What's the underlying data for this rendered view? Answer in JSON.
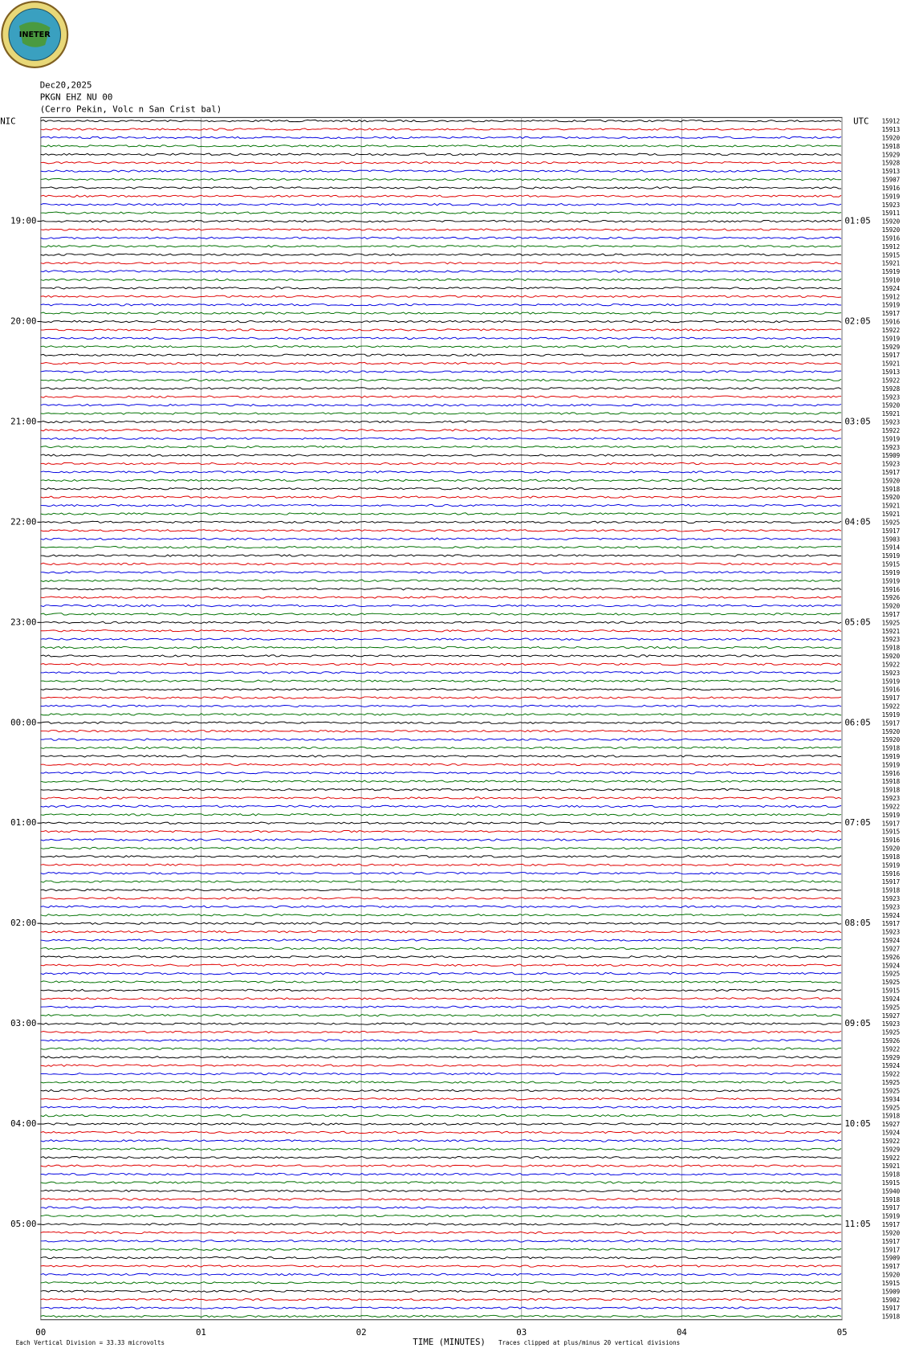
{
  "logo": "INETER",
  "chart_data": {
    "type": "helicorder",
    "title_lines": [
      "Dec20,2025",
      "PKGN EHZ NU 00",
      "(Cerro Pekin, Volc n San Crist bal)"
    ],
    "left_zone": "NIC",
    "right_zone": "UTC",
    "trace_colors": [
      "#000000",
      "#e00000",
      "#0000e0",
      "#007000"
    ],
    "left_labels": [
      "19:00",
      "20:00",
      "21:00",
      "22:00",
      "23:00",
      "00:00",
      "01:00",
      "02:00",
      "03:00",
      "04:00",
      "05:00"
    ],
    "right_labels": [
      "01:05",
      "02:05",
      "03:05",
      "04:05",
      "05:05",
      "06:05",
      "07:05",
      "08:05",
      "09:05",
      "10:05",
      "11:05"
    ],
    "trace_values": [
      15912,
      15913,
      15920,
      15918,
      15929,
      15928,
      15913,
      15907,
      15916,
      15919,
      15923,
      15911,
      15920,
      15920,
      15916,
      15912,
      15915,
      15921,
      15919,
      15910,
      15924,
      15912,
      15919,
      15917,
      15916,
      15922,
      15919,
      15929,
      15917,
      15921,
      15913,
      15922,
      15928,
      15923,
      15920,
      15921,
      15923,
      15922,
      15919,
      15923,
      15909,
      15923,
      15917,
      15920,
      15918,
      15920,
      15921,
      15921,
      15925,
      15917,
      15903,
      15914,
      15919,
      15915,
      15919,
      15919,
      15916,
      15926,
      15920,
      15917,
      15925,
      15921,
      15923,
      15918,
      15920,
      15922,
      15923,
      15919,
      15916,
      15917,
      15922,
      15919,
      15917,
      15920,
      15920,
      15918,
      15919,
      15919,
      15916,
      15918,
      15918,
      15923,
      15922,
      15919,
      15917,
      15915,
      15916,
      15920,
      15918,
      15919,
      15916,
      15917,
      15918,
      15923,
      15923,
      15924,
      15917,
      15923,
      15924,
      15927,
      15926,
      15924,
      15925,
      15925,
      15915,
      15924,
      15925,
      15927,
      15923,
      15925,
      15926,
      15922,
      15929,
      15924,
      15922,
      15925,
      15925,
      15934,
      15925,
      15918,
      15927,
      15924,
      15922,
      15929,
      15922,
      15921,
      15918,
      15915,
      15940,
      15918,
      15917,
      15919,
      15917,
      15920,
      15917,
      15917,
      15909,
      15917,
      15920,
      15915,
      15909,
      15902,
      15917,
      15918
    ],
    "xlim": [
      0,
      5
    ],
    "xticks": [
      {
        "value": 0,
        "label": "00"
      },
      {
        "value": 1,
        "label": "01"
      },
      {
        "value": 2,
        "label": "02"
      },
      {
        "value": 3,
        "label": "03"
      },
      {
        "value": 4,
        "label": "04"
      },
      {
        "value": 5,
        "label": "05"
      }
    ],
    "xlabel": "TIME (MINUTES)",
    "footer_left": "Each Vertical Division =   33.33 microvolts",
    "footer_right": "Traces clipped at plus/minus 20 vertical divisions"
  }
}
